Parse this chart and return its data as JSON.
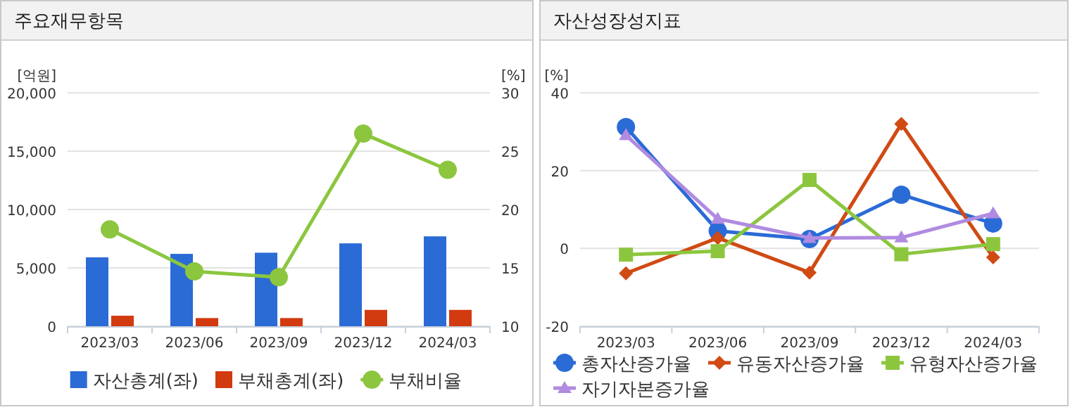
{
  "chart_data": [
    {
      "type": "bar",
      "title": "주요재무항목",
      "categories": [
        "2023/03",
        "2023/06",
        "2023/09",
        "2023/12",
        "2024/03"
      ],
      "ylabel": "[억원]",
      "y2label": "[%]",
      "ylim": [
        0,
        20000
      ],
      "yticks": [
        {
          "value": 0,
          "label": "0"
        },
        {
          "value": 5000,
          "label": "5,000"
        },
        {
          "value": 10000,
          "label": "10,000"
        },
        {
          "value": 15000,
          "label": "15,000"
        },
        {
          "value": 20000,
          "label": "20,000"
        }
      ],
      "y2lim": [
        10,
        30
      ],
      "y2ticks": [
        10,
        15,
        20,
        25,
        30
      ],
      "grid": "y",
      "legend": "bottom",
      "series": [
        {
          "name": "자산총계(좌)",
          "color": "#2a6bd6",
          "values": [
            5900,
            6200,
            6300,
            7100,
            7700
          ]
        },
        {
          "name": "부채총계(좌)",
          "color": "#d23a0f",
          "values": [
            900,
            700,
            700,
            1400,
            1400
          ]
        },
        {
          "name": "부채비율",
          "type": "line",
          "axis": "y2",
          "marker": "circle",
          "color": "#8cc63f",
          "values": [
            18.3,
            14.7,
            14.2,
            26.5,
            23.4
          ]
        }
      ]
    },
    {
      "type": "line",
      "title": "자산성장성지표",
      "categories": [
        "2023/03",
        "2023/06",
        "2023/09",
        "2023/12",
        "2024/03"
      ],
      "ylabel": "[%]",
      "ylim": [
        -20,
        40
      ],
      "yticks": [
        -20,
        0,
        20,
        40
      ],
      "grid": "y",
      "legend": "bottom",
      "series": [
        {
          "name": "총자산증가율",
          "color": "#2a6bd6",
          "marker": "circle",
          "values": [
            31.2,
            4.5,
            2.4,
            13.8,
            6.4
          ]
        },
        {
          "name": "유동자산증가율",
          "color": "#d04a14",
          "marker": "diamond",
          "values": [
            -6.4,
            2.7,
            -6.2,
            32,
            -2.3
          ]
        },
        {
          "name": "유형자산증가율",
          "color": "#8cc63f",
          "marker": "square",
          "values": [
            -1.6,
            -0.7,
            17.6,
            -1.5,
            1.1
          ]
        },
        {
          "name": "자기자본증가율",
          "color": "#b08be0",
          "marker": "triangle",
          "values": [
            29.1,
            7.6,
            2.7,
            2.8,
            9.0
          ]
        }
      ]
    }
  ]
}
